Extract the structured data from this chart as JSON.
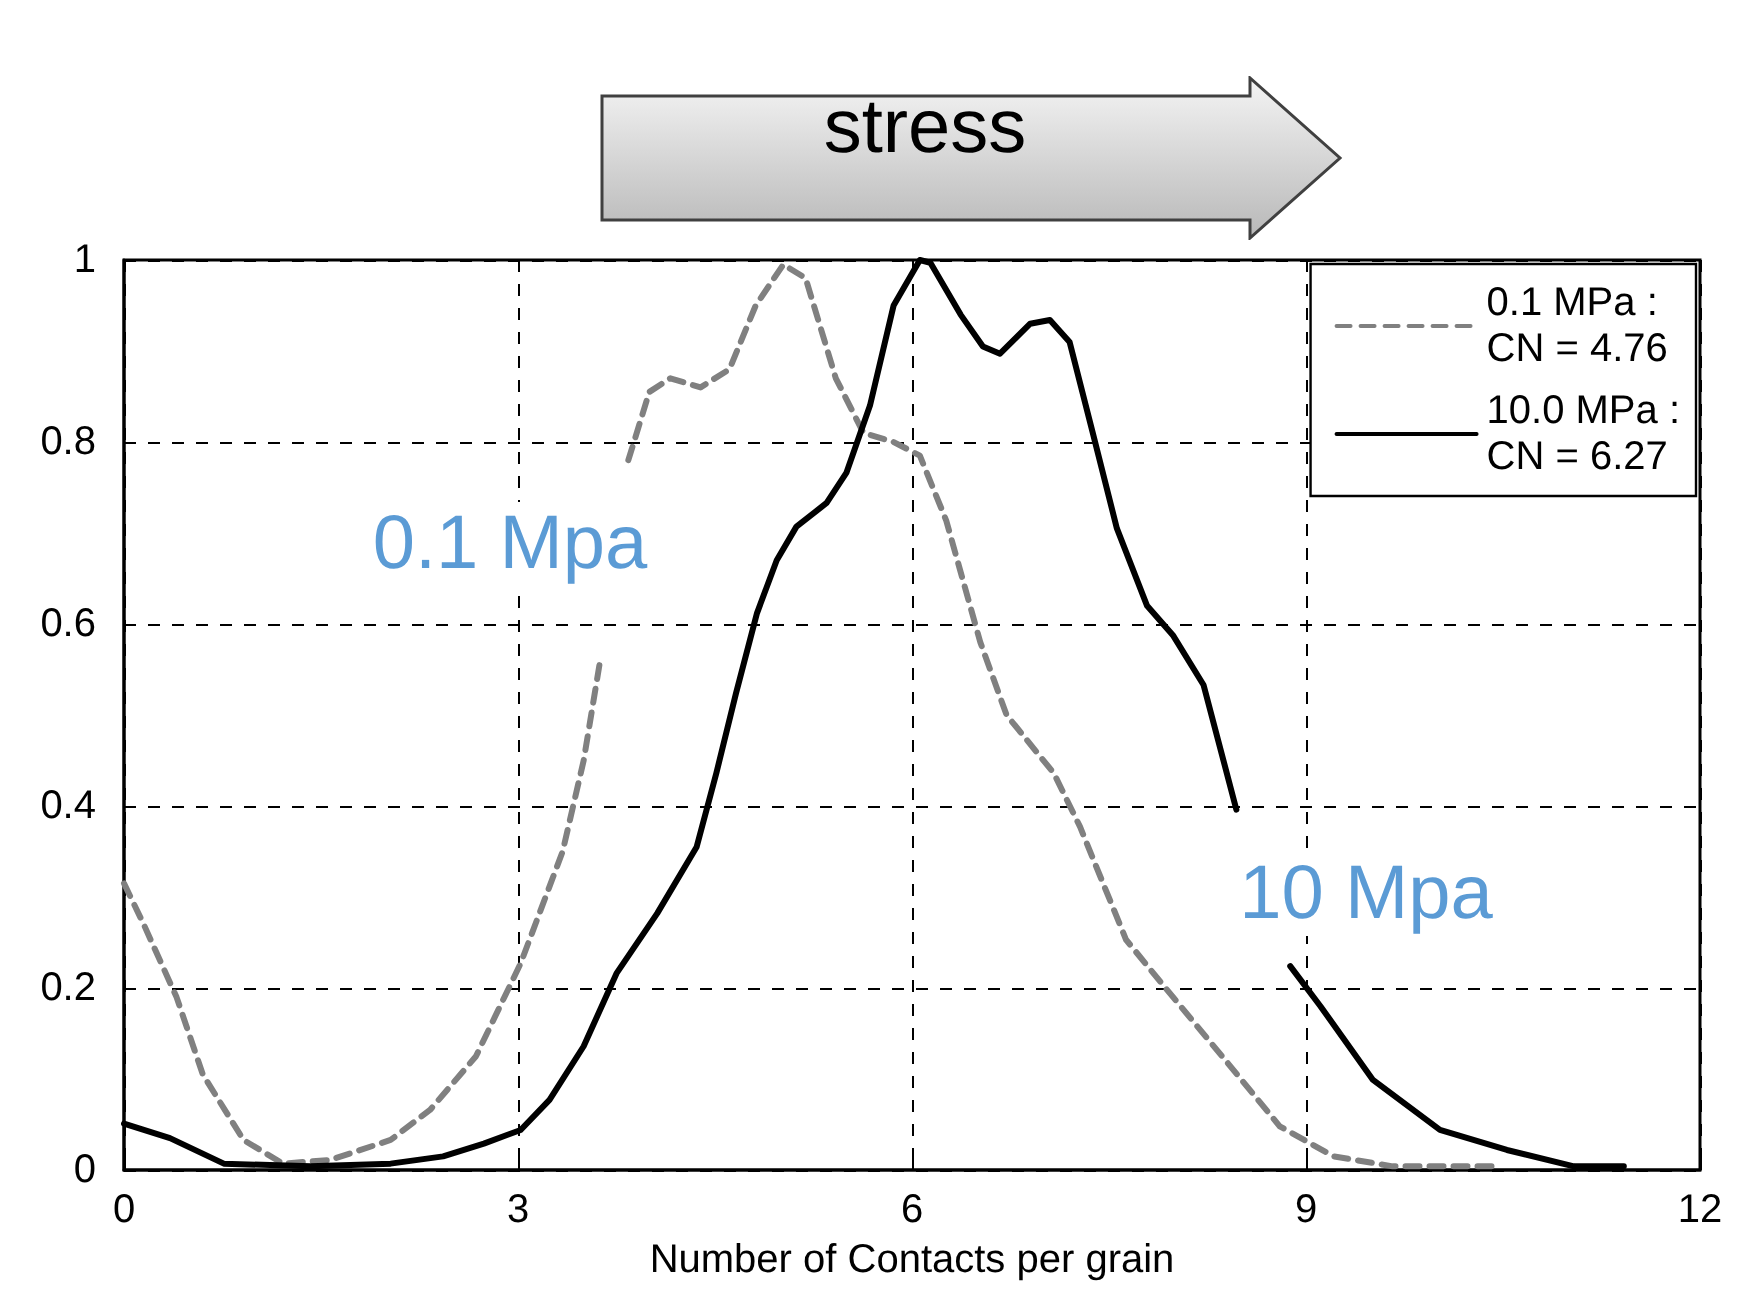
{
  "chart_data": {
    "type": "line",
    "xlabel": "Number of Contacts per grain",
    "xlim": [
      0,
      12
    ],
    "xticks": [
      0,
      3,
      6,
      9,
      12
    ],
    "ylim": [
      0,
      1
    ],
    "yticks": [
      0,
      0.2,
      0.4,
      0.6,
      0.8,
      1
    ],
    "grid": true,
    "legend": "top right",
    "marker": "none",
    "annotations": [
      "stress",
      "0.1 Mpa",
      "10 Mpa"
    ],
    "series": [
      {
        "name": "0.1 MPa :\nCN = 4.76",
        "color": "#808080",
        "line_style": "dashed",
        "x": [
          0,
          0.15,
          0.4,
          0.6,
          0.91,
          1.21,
          1.57,
          2.03,
          2.33,
          2.68,
          3.02,
          3.34,
          3.5,
          3.62,
          3.72,
          3.84,
          4.0,
          4.16,
          4.39,
          4.61,
          4.81,
          5.02,
          5.19,
          5.42,
          5.63,
          5.86,
          6.06,
          6.26,
          6.52,
          6.72,
          7.08,
          7.28,
          7.63,
          7.93,
          8.39,
          8.8,
          9.21,
          9.66,
          10.43
        ],
        "values": [
          0.315,
          0.27,
          0.19,
          0.105,
          0.033,
          0.007,
          0.011,
          0.033,
          0.066,
          0.125,
          0.227,
          0.35,
          0.45,
          0.555,
          null,
          0.78,
          0.855,
          0.87,
          0.86,
          0.88,
          0.95,
          0.995,
          0.98,
          0.87,
          0.81,
          0.8,
          0.785,
          0.714,
          0.58,
          0.5,
          0.436,
          0.377,
          0.253,
          0.2,
          0.12,
          0.048,
          0.015,
          0.004,
          0.004
        ]
      },
      {
        "name": "10.0 MPa :\nCN = 6.27",
        "color": "#000000",
        "line_style": "solid",
        "x": [
          0,
          0.35,
          0.76,
          1.42,
          2.03,
          2.43,
          2.74,
          3.02,
          3.24,
          3.5,
          3.75,
          4.06,
          4.36,
          4.51,
          4.66,
          4.82,
          4.97,
          5.12,
          5.35,
          5.5,
          5.68,
          5.86,
          6.06,
          6.14,
          6.37,
          6.54,
          6.67,
          6.9,
          7.05,
          7.2,
          7.38,
          7.56,
          7.79,
          7.99,
          8.22,
          8.47,
          8.65,
          8.88,
          9.11,
          9.51,
          10.02,
          10.53,
          11.04,
          11.42
        ],
        "values": [
          0.051,
          0.035,
          0.007,
          0.004,
          0.007,
          0.015,
          0.029,
          0.044,
          0.077,
          0.136,
          0.216,
          0.282,
          0.355,
          0.436,
          0.524,
          0.612,
          0.67,
          0.707,
          0.733,
          0.766,
          0.84,
          0.95,
          1.0,
          0.997,
          0.94,
          0.905,
          0.897,
          0.93,
          0.934,
          0.91,
          0.808,
          0.705,
          0.62,
          0.587,
          0.533,
          0.396,
          null,
          0.224,
          0.18,
          0.099,
          0.044,
          0.022,
          0.004,
          0.004
        ]
      }
    ]
  }
}
